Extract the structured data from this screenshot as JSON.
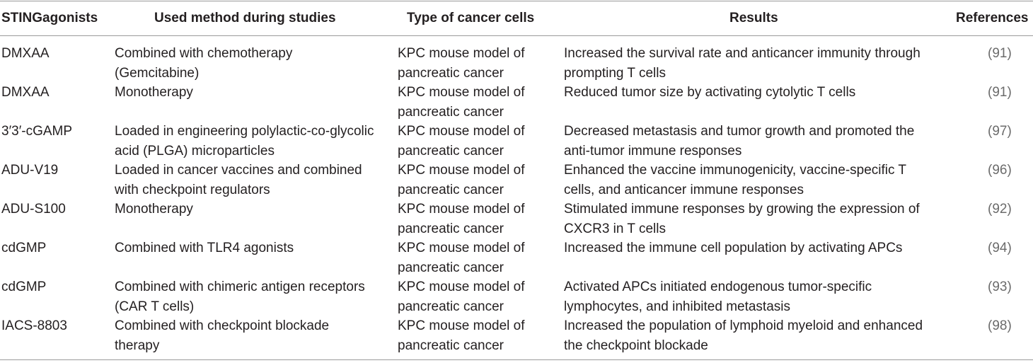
{
  "headers": {
    "agonist": "STINGagonists",
    "method": "Used method during studies",
    "cells": "Type of cancer cells",
    "results": "Results",
    "references": "References"
  },
  "rows": [
    {
      "agonist": "DMXAA",
      "method": [
        "Combined with chemotherapy",
        "(Gemcitabine)"
      ],
      "cells": [
        "KPC mouse model of",
        "pancreatic cancer"
      ],
      "results": [
        "Increased the survival rate and anticancer immunity through",
        "prompting T cells"
      ],
      "ref": "(91)"
    },
    {
      "agonist": "DMXAA",
      "method": [
        "Monotherapy",
        ""
      ],
      "cells": [
        "KPC mouse model of",
        "pancreatic cancer"
      ],
      "results": [
        "Reduced tumor size by activating cytolytic T cells",
        ""
      ],
      "ref": "(91)"
    },
    {
      "agonist": "3′3′-cGAMP",
      "method": [
        "Loaded in engineering polylactic-co-glycolic",
        "acid (PLGA) microparticles"
      ],
      "cells": [
        "KPC mouse model of",
        "pancreatic cancer"
      ],
      "results": [
        "Decreased metastasis and tumor growth and promoted the",
        "anti-tumor immune responses"
      ],
      "ref": "(97)"
    },
    {
      "agonist": "ADU-V19",
      "method": [
        "Loaded in cancer vaccines and combined",
        "with checkpoint regulators"
      ],
      "cells": [
        "KPC mouse model of",
        "pancreatic cancer"
      ],
      "results": [
        "Enhanced the vaccine immunogenicity, vaccine-specific T",
        "cells, and anticancer immune responses"
      ],
      "ref": "(96)"
    },
    {
      "agonist": "ADU-S100",
      "method": [
        "Monotherapy",
        ""
      ],
      "cells": [
        "KPC mouse model of",
        "pancreatic cancer"
      ],
      "results": [
        "Stimulated immune responses by growing the expression of",
        "CXCR3 in T cells"
      ],
      "ref": "(92)"
    },
    {
      "agonist": "cdGMP",
      "method": [
        "Combined with TLR4 agonists",
        ""
      ],
      "cells": [
        "KPC mouse model of",
        "pancreatic cancer"
      ],
      "results": [
        "Increased the immune cell population by activating APCs",
        ""
      ],
      "ref": "(94)"
    },
    {
      "agonist": "cdGMP",
      "method": [
        "Combined with chimeric antigen receptors",
        "(CAR T cells)"
      ],
      "cells": [
        "KPC mouse model of",
        "pancreatic cancer"
      ],
      "results": [
        "Activated APCs initiated endogenous tumor-specific",
        "lymphocytes, and inhibited metastasis"
      ],
      "ref": "(93)"
    },
    {
      "agonist": "IACS-8803",
      "method": [
        "Combined with checkpoint blockade",
        "therapy"
      ],
      "cells": [
        "KPC mouse model of",
        "pancreatic cancer"
      ],
      "results": [
        "Increased the population of lymphoid myeloid and enhanced",
        "the checkpoint blockade"
      ],
      "ref": "(98)"
    }
  ]
}
